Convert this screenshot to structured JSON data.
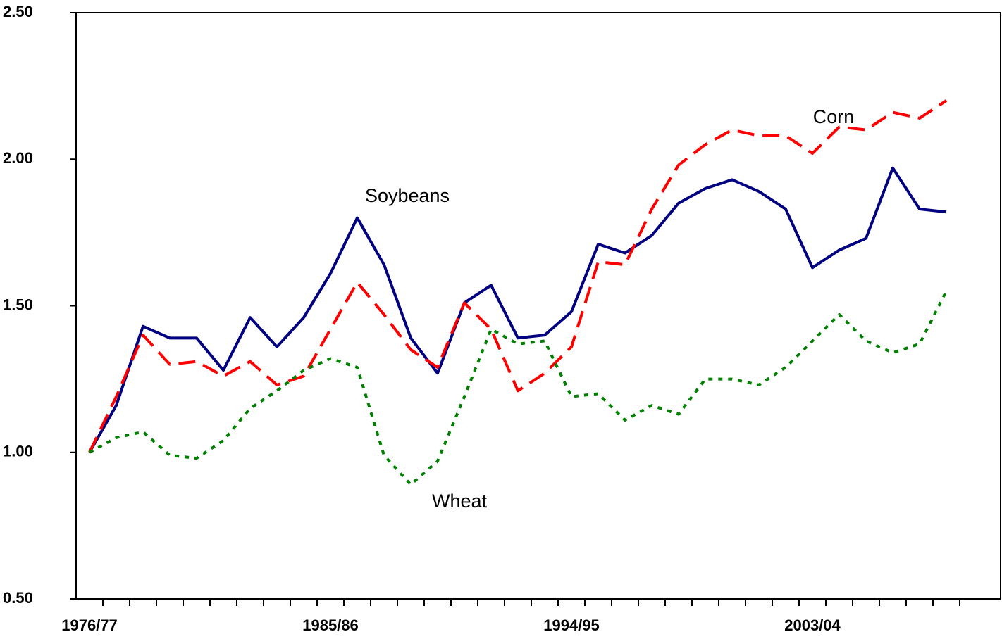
{
  "chart_data": {
    "type": "line",
    "categories": [
      "1976/77",
      null,
      null,
      null,
      null,
      null,
      null,
      null,
      null,
      "1985/86",
      null,
      null,
      null,
      null,
      null,
      null,
      null,
      null,
      "1994/95",
      null,
      null,
      null,
      null,
      null,
      null,
      null,
      null,
      "2003/04",
      null,
      null,
      null,
      null,
      null
    ],
    "series": [
      {
        "name": "Soybeans",
        "color": "#000080",
        "dash": "solid",
        "values": [
          1.0,
          1.16,
          1.43,
          1.39,
          1.39,
          1.28,
          1.46,
          1.36,
          1.46,
          1.61,
          1.8,
          1.64,
          1.39,
          1.27,
          1.51,
          1.57,
          1.39,
          1.4,
          1.48,
          1.71,
          1.68,
          1.74,
          1.85,
          1.9,
          1.93,
          1.89,
          1.83,
          1.63,
          1.69,
          1.73,
          1.97,
          1.83,
          1.82
        ]
      },
      {
        "name": "Corn",
        "color": "#ff0000",
        "dash": "dashed",
        "values": [
          1.0,
          1.19,
          1.4,
          1.3,
          1.31,
          1.26,
          1.31,
          1.23,
          1.26,
          1.42,
          1.58,
          1.47,
          1.35,
          1.29,
          1.51,
          1.42,
          1.21,
          1.27,
          1.36,
          1.65,
          1.64,
          1.83,
          1.98,
          2.05,
          2.1,
          2.08,
          2.08,
          2.02,
          2.11,
          2.1,
          2.16,
          2.14,
          2.2
        ]
      },
      {
        "name": "Wheat",
        "color": "#008000",
        "dash": "dotted",
        "values": [
          1.0,
          1.05,
          1.07,
          0.99,
          0.98,
          1.04,
          1.15,
          1.21,
          1.28,
          1.32,
          1.29,
          0.99,
          0.89,
          0.97,
          1.19,
          1.42,
          1.37,
          1.38,
          1.19,
          1.2,
          1.11,
          1.16,
          1.13,
          1.25,
          1.25,
          1.23,
          1.29,
          1.38,
          1.47,
          1.38,
          1.34,
          1.37,
          1.55
        ]
      }
    ],
    "ylim": [
      0.5,
      2.5
    ],
    "yticks": [
      {
        "value": 0.5,
        "label": "0.50"
      },
      {
        "value": 1.0,
        "label": "1.00"
      },
      {
        "value": 1.5,
        "label": "1.50"
      },
      {
        "value": 2.0,
        "label": "2.00"
      },
      {
        "value": 2.5,
        "label": "2.50"
      }
    ],
    "grid": false
  }
}
